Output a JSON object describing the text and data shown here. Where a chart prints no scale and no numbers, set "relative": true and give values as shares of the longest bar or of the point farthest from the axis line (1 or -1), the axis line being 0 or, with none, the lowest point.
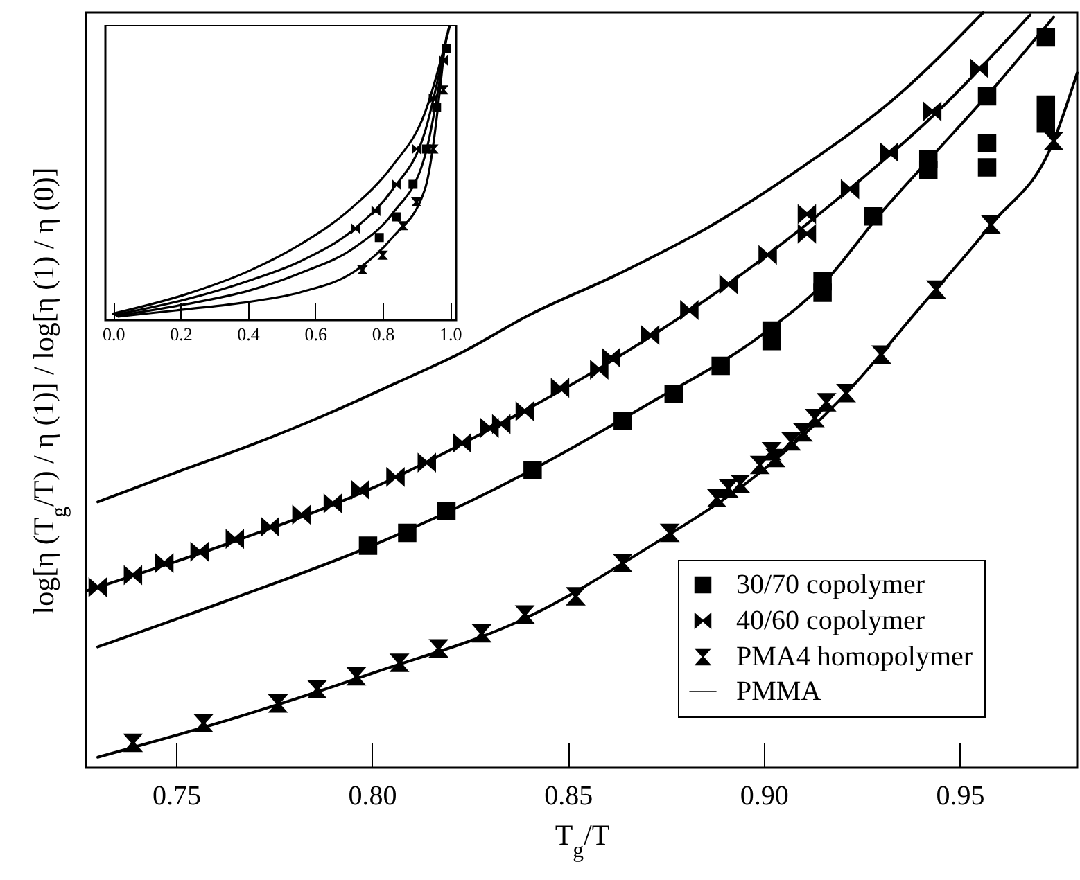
{
  "chart_data": [
    {
      "type": "scatter",
      "xlabel": "T$_{g}$/T",
      "ylabel": "log[η (T$_{g}$/T) / η (1)]  /  log[η (1) / η (0)]",
      "relative": true,
      "xlim": [
        0.727,
        0.98
      ],
      "xticks": [
        0.75,
        {
          "value": 0.8,
          "label": "0.80"
        },
        0.85,
        {
          "value": 0.9,
          "label": "0.90"
        },
        0.95
      ],
      "legend": "bottom right",
      "series": [
        {
          "name": "30/70 copolymer",
          "marker": "square",
          "color": "#000000",
          "x": [
            0.799,
            0.809,
            0.819,
            0.841,
            0.864,
            0.877,
            0.889,
            0.902,
            0.902,
            0.915,
            0.915,
            0.928,
            0.942,
            0.942,
            0.957,
            0.957,
            0.957,
            0.972,
            0.972,
            0.972
          ],
          "values": [
            0.294,
            0.311,
            0.34,
            0.394,
            0.459,
            0.495,
            0.532,
            0.579,
            0.565,
            0.644,
            0.629,
            0.73,
            0.806,
            0.791,
            0.889,
            0.827,
            0.795,
            0.967,
            0.878,
            0.853
          ]
        },
        {
          "name": "40/60 copolymer",
          "marker": "diamond",
          "color": "#000000",
          "x": [
            0.73,
            0.739,
            0.747,
            0.756,
            0.765,
            0.774,
            0.782,
            0.79,
            0.797,
            0.806,
            0.814,
            0.823,
            0.83,
            0.833,
            0.839,
            0.848,
            0.858,
            0.861,
            0.871,
            0.881,
            0.891,
            0.901,
            0.911,
            0.911,
            0.922,
            0.932,
            0.943,
            0.955
          ],
          "values": [
            0.239,
            0.255,
            0.271,
            0.286,
            0.303,
            0.319,
            0.335,
            0.35,
            0.368,
            0.385,
            0.404,
            0.43,
            0.45,
            0.455,
            0.472,
            0.503,
            0.527,
            0.543,
            0.573,
            0.606,
            0.64,
            0.679,
            0.707,
            0.733,
            0.766,
            0.815,
            0.869,
            0.926
          ]
        },
        {
          "name": "PMA4 homopolymer",
          "marker": "triangle",
          "color": "#000000",
          "x": [
            0.739,
            0.757,
            0.776,
            0.786,
            0.796,
            0.807,
            0.817,
            0.828,
            0.839,
            0.852,
            0.864,
            0.876,
            0.888,
            0.891,
            0.894,
            0.899,
            0.902,
            0.903,
            0.907,
            0.91,
            0.913,
            0.916,
            0.921,
            0.93,
            0.944,
            0.958,
            0.974
          ],
          "values": [
            0.033,
            0.059,
            0.085,
            0.104,
            0.121,
            0.139,
            0.158,
            0.178,
            0.203,
            0.227,
            0.271,
            0.311,
            0.357,
            0.37,
            0.376,
            0.401,
            0.419,
            0.41,
            0.432,
            0.444,
            0.463,
            0.484,
            0.496,
            0.547,
            0.633,
            0.719,
            0.83
          ]
        },
        {
          "name": "PMMA",
          "type": "line",
          "marker": "none",
          "color": "#000000",
          "x": [
            0.73,
            0.75,
            0.77,
            0.788,
            0.806,
            0.823,
            0.84,
            0.863,
            0.887,
            0.91,
            0.934,
            0.956
          ],
          "values": [
            0.352,
            0.391,
            0.429,
            0.467,
            0.509,
            0.55,
            0.599,
            0.654,
            0.719,
            0.796,
            0.889,
            1
          ]
        },
        {
          "type": "line",
          "color": "#000000",
          "x": [
            0.727,
            0.765,
            0.8,
            0.83,
            0.86,
            0.89,
            0.92,
            0.945,
            0.968
          ],
          "values": [
            0.234,
            0.3,
            0.37,
            0.448,
            0.535,
            0.637,
            0.758,
            0.872,
            0.997
          ]
        },
        {
          "type": "line",
          "color": "#000000",
          "x": [
            0.73,
            0.765,
            0.8,
            0.84,
            0.87,
            0.9,
            0.915,
            0.93,
            0.943,
            0.957,
            0.974
          ],
          "values": [
            0.16,
            0.225,
            0.294,
            0.392,
            0.48,
            0.575,
            0.64,
            0.735,
            0.81,
            0.89,
            0.994
          ]
        },
        {
          "type": "line",
          "color": "#000000",
          "x": [
            0.73,
            0.76,
            0.8,
            0.84,
            0.87,
            0.9,
            0.92,
            0.94,
            0.958,
            0.974,
            0.98
          ],
          "values": [
            0.014,
            0.058,
            0.125,
            0.2,
            0.29,
            0.395,
            0.49,
            0.61,
            0.719,
            0.83,
            0.92
          ]
        }
      ]
    },
    {
      "type": "line",
      "relative": true,
      "xlim": [
        -0.023,
        1.018
      ],
      "xticks": [
        {
          "value": 0,
          "label": "0.0"
        },
        {
          "value": 0.2,
          "label": "0.2"
        },
        {
          "value": 0.4,
          "label": "0.4"
        },
        {
          "value": 0.6,
          "label": "0.6"
        },
        {
          "value": 0.8,
          "label": "0.8"
        },
        {
          "value": 1,
          "label": "1.0"
        }
      ],
      "series": [
        {
          "color": "#000000",
          "x": [
            0,
            0.212,
            0.404,
            0.555,
            0.705,
            0.829,
            0.925,
            1
          ],
          "values": [
            0.022,
            0.086,
            0.167,
            0.256,
            0.377,
            0.523,
            0.701,
            1
          ]
        },
        {
          "color": "#000000",
          "x": [
            0.005,
            0.212,
            0.404,
            0.555,
            0.719,
            0.829,
            0.925,
            0.995
          ],
          "values": [
            0.018,
            0.069,
            0.134,
            0.199,
            0.312,
            0.442,
            0.636,
            0.985
          ]
        },
        {
          "color": "#000000",
          "x": [
            0.01,
            0.212,
            0.404,
            0.555,
            0.719,
            0.829,
            0.925,
            0.99
          ],
          "values": [
            0.015,
            0.053,
            0.1,
            0.159,
            0.248,
            0.361,
            0.555,
            0.965
          ]
        },
        {
          "color": "#000000",
          "x": [
            0.015,
            0.212,
            0.404,
            0.555,
            0.719,
            0.829,
            0.925,
            0.985
          ],
          "values": [
            0.012,
            0.036,
            0.062,
            0.094,
            0.167,
            0.28,
            0.442,
            0.94
          ]
        },
        {
          "type": "scatter",
          "marker": "diamond",
          "color": "#000000",
          "x": [
            0.72,
            0.78,
            0.84,
            0.9,
            0.95,
            0.98
          ],
          "values": [
            0.31,
            0.37,
            0.46,
            0.58,
            0.75,
            0.88
          ]
        },
        {
          "type": "scatter",
          "marker": "square",
          "color": "#000000",
          "x": [
            0.79,
            0.84,
            0.89,
            0.93,
            0.96,
            0.99
          ],
          "values": [
            0.28,
            0.35,
            0.46,
            0.58,
            0.72,
            0.92
          ]
        },
        {
          "type": "scatter",
          "marker": "triangle",
          "color": "#000000",
          "x": [
            0.74,
            0.8,
            0.86,
            0.9,
            0.95,
            0.98
          ],
          "values": [
            0.17,
            0.22,
            0.32,
            0.4,
            0.58,
            0.78
          ]
        }
      ]
    }
  ]
}
